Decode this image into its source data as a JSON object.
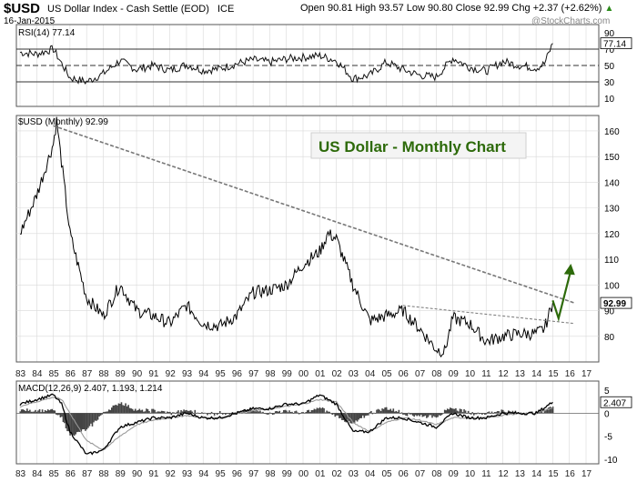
{
  "header": {
    "symbol": "$USD",
    "name": "US Dollar Index - Cash Settle (EOD)",
    "exchange": "ICE",
    "date": "16-Jan-2015",
    "quote": "Open 90.81  High 93.57  Low 90.80  Close 92.99  Chg +2.37 (+2.62%)",
    "quote_arrow": "▲",
    "watermark": "@StockCharts.com"
  },
  "colors": {
    "background": "#ffffff",
    "price_line": "#000000",
    "trendline": "#777777",
    "projection": "#2d6a0a",
    "annotation_text": "#2d6a0a",
    "annotation_box": "#f4f4f4",
    "macd_signal": "#999999",
    "histogram": "#444444",
    "grid": "#d9d9d9"
  },
  "annotation": {
    "text": "US Dollar - Monthly Chart"
  },
  "chart_data": [
    {
      "type": "line",
      "panel": "rsi",
      "title": "RSI(14) 77.14",
      "current_value": "77.14",
      "y_ticks": [
        "90",
        "70",
        "50",
        "30",
        "10"
      ],
      "reference_lines": [
        70,
        50,
        30
      ],
      "ylim": [
        0,
        100
      ],
      "x": [
        1983,
        1984,
        1985,
        1986,
        1987,
        1988,
        1989,
        1990,
        1991,
        1992,
        1993,
        1994,
        1995,
        1996,
        1997,
        1998,
        1999,
        2000,
        2001,
        2002,
        2003,
        2004,
        2005,
        2006,
        2007,
        2008,
        2009,
        2010,
        2011,
        2012,
        2013,
        2014,
        2014.5,
        2015
      ],
      "values": [
        66,
        64,
        70,
        35,
        30,
        40,
        56,
        45,
        50,
        44,
        51,
        44,
        46,
        52,
        57,
        54,
        58,
        60,
        62,
        56,
        34,
        38,
        54,
        45,
        38,
        36,
        59,
        48,
        43,
        55,
        50,
        47,
        52,
        77
      ]
    },
    {
      "type": "line",
      "panel": "price",
      "title": "$USD (Monthly) 92.99",
      "current_value": "92.99",
      "y_ticks": [
        "160",
        "150",
        "140",
        "130",
        "120",
        "110",
        "100",
        "90",
        "80"
      ],
      "ylim": [
        70,
        166
      ],
      "x_tick_labels": [
        "83",
        "84",
        "85",
        "86",
        "87",
        "88",
        "89",
        "90",
        "91",
        "92",
        "93",
        "94",
        "95",
        "96",
        "97",
        "98",
        "99",
        "00",
        "01",
        "02",
        "03",
        "04",
        "05",
        "06",
        "07",
        "08",
        "09",
        "10",
        "11",
        "12",
        "13",
        "14",
        "15",
        "16",
        "17"
      ],
      "x": [
        1983,
        1984,
        1985,
        1985.2,
        1986,
        1987,
        1988,
        1989,
        1990,
        1991,
        1992,
        1993,
        1994,
        1995,
        1996,
        1997,
        1998,
        1999,
        2000,
        2001,
        2001.5,
        2002,
        2003,
        2004,
        2005,
        2006,
        2007,
        2008,
        2008.5,
        2009,
        2010,
        2011,
        2012,
        2013,
        2014,
        2014.5,
        2015
      ],
      "values": [
        120,
        135,
        155,
        164,
        120,
        95,
        88,
        100,
        90,
        88,
        85,
        92,
        85,
        84,
        88,
        97,
        98,
        100,
        108,
        113,
        120,
        118,
        100,
        86,
        88,
        90,
        83,
        75,
        74,
        87,
        85,
        78,
        80,
        81,
        81,
        83,
        92.99
      ],
      "series": [
        {
          "name": "trendline 1985-2015",
          "x": [
            1985,
            2016.3
          ],
          "values": [
            162,
            93
          ]
        },
        {
          "name": "trendline 2006-2016",
          "x": [
            2006,
            2016.3
          ],
          "values": [
            92,
            85
          ]
        },
        {
          "name": "projection",
          "x": [
            2015,
            2015.35,
            2016.1
          ],
          "values": [
            94,
            87,
            106
          ]
        }
      ]
    },
    {
      "type": "line",
      "panel": "macd",
      "title": "MACD(12,26,9) 2.407, 1.193, 1.214",
      "macd_value": "2.407",
      "signal_value": "1.193",
      "hist_value": "1.214",
      "y_ticks": [
        "5",
        "0",
        "-5",
        "-10"
      ],
      "ylim": [
        -11,
        7
      ],
      "x_tick_labels": [
        "83",
        "84",
        "85",
        "86",
        "87",
        "88",
        "89",
        "90",
        "91",
        "92",
        "93",
        "94",
        "95",
        "96",
        "97",
        "98",
        "99",
        "00",
        "01",
        "02",
        "03",
        "04",
        "05",
        "06",
        "07",
        "08",
        "09",
        "10",
        "11",
        "12",
        "13",
        "14",
        "15",
        "16",
        "17"
      ],
      "x": [
        1983,
        1984,
        1985,
        1985.5,
        1986,
        1987,
        1988,
        1989,
        1990,
        1991,
        1992,
        1993,
        1994,
        1995,
        1996,
        1997,
        1998,
        1999,
        2000,
        2001,
        2002,
        2003,
        2004,
        2005,
        2006,
        2007,
        2008,
        2009,
        2010,
        2011,
        2012,
        2013,
        2014,
        2015
      ],
      "series": [
        {
          "name": "MACD",
          "values": [
            2,
            3,
            4,
            2,
            -4,
            -9,
            -8,
            -3,
            -2,
            -1,
            -1,
            0,
            -1,
            -1,
            0,
            1,
            1,
            2,
            2,
            4,
            2,
            -4,
            -4,
            -1,
            -1,
            -2,
            -3,
            0,
            -1,
            -1,
            0,
            0,
            0,
            2.4
          ]
        },
        {
          "name": "Signal",
          "values": [
            1.5,
            2.5,
            3.5,
            3,
            0,
            -6,
            -8,
            -5,
            -2.5,
            -1.5,
            -1,
            -0.5,
            -1,
            -1,
            0,
            0.5,
            1,
            1.5,
            2,
            3,
            2.5,
            -2,
            -4,
            -2,
            -1,
            -1.5,
            -2.5,
            -1,
            -1,
            -1,
            -0.5,
            0,
            0,
            1.2
          ]
        }
      ]
    }
  ]
}
